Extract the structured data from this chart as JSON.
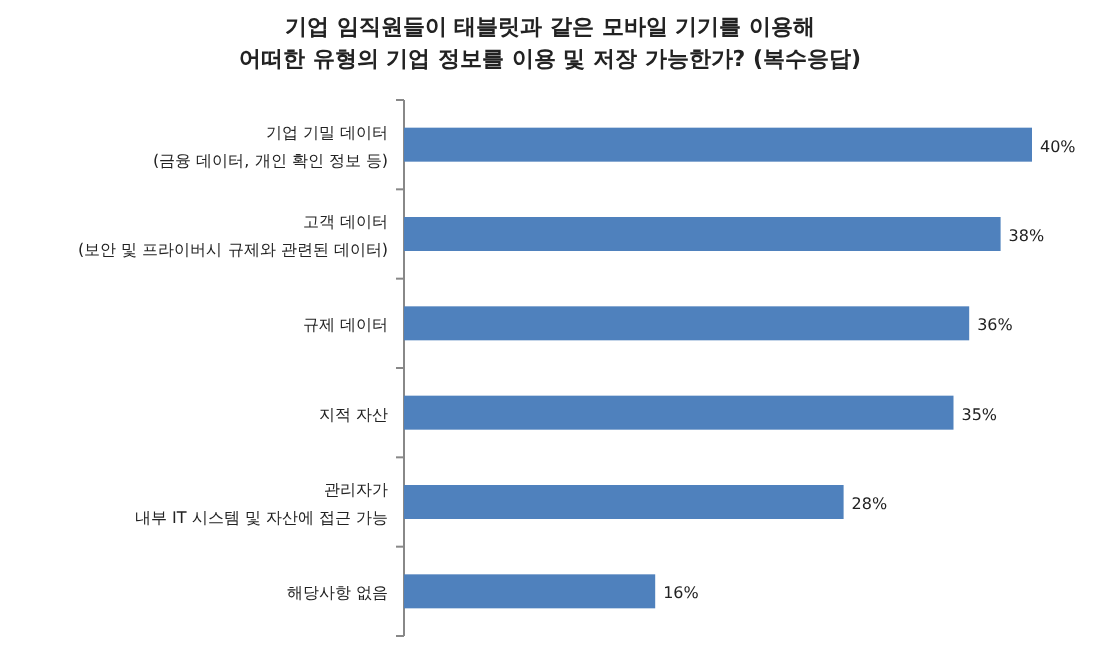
{
  "chart_data": {
    "type": "bar",
    "orientation": "horizontal",
    "title": "기업 임직원들이 태블릿과 같은 모바일 기기를 이용해\n어떠한 유형의 기업 정보를 이용 및 저장 가능한가? (복수응답)",
    "categories": [
      "기업 기밀 데이터\n(금융 데이터, 개인 확인 정보 등)",
      "고객 데이터\n(보안 및 프라이버시 규제와 관련된 데이터)",
      "규제 데이터",
      "지적 자산",
      "관리자가\n내부 IT 시스템 및 자산에 접근 가능",
      "해당사항 없음"
    ],
    "values": [
      40,
      38,
      36,
      35,
      28,
      16
    ],
    "value_labels": [
      "40%",
      "38%",
      "36%",
      "35%",
      "28%",
      "16%"
    ],
    "color": "#4f81bd"
  }
}
